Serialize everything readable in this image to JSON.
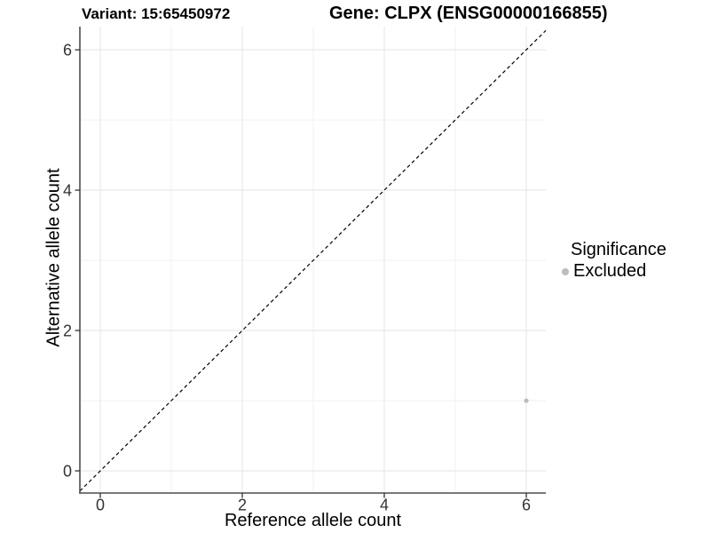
{
  "figure": {
    "title_left": "Variant: 15:65450972",
    "title_right": "Gene: CLPX (ENSG00000166855)"
  },
  "legend": {
    "title": "Significance",
    "items": [
      {
        "label": "Excluded",
        "color": "#bdbdbd"
      }
    ]
  },
  "chart_data": {
    "type": "scatter",
    "xlabel": "Reference allele count",
    "ylabel": "Alternative allele count",
    "xlim": [
      -0.2875,
      6.275
    ],
    "ylim": [
      -0.316,
      6.33
    ],
    "x_major_ticks": [
      0,
      2,
      4,
      6
    ],
    "y_major_ticks": [
      0,
      2,
      4,
      6
    ],
    "x_minor_gridlines": [
      1,
      3,
      5
    ],
    "y_minor_gridlines": [
      1,
      3,
      5
    ],
    "grid": "major+minor",
    "legend_position": "right",
    "identity_line": {
      "slope": 1,
      "intercept": 0,
      "style": "dashed",
      "color": "#000000"
    },
    "series": [
      {
        "name": "Excluded",
        "color": "#bdbdbd",
        "points": [
          {
            "x": 6,
            "y": 1
          }
        ]
      }
    ]
  },
  "colors": {
    "background": "#ffffff",
    "grid_major": "#e6e6e6",
    "grid_minor": "#f2f2f2",
    "axis_line": "#4d4d4d",
    "tick_mark": "#333333",
    "tick_label": "#333333"
  }
}
